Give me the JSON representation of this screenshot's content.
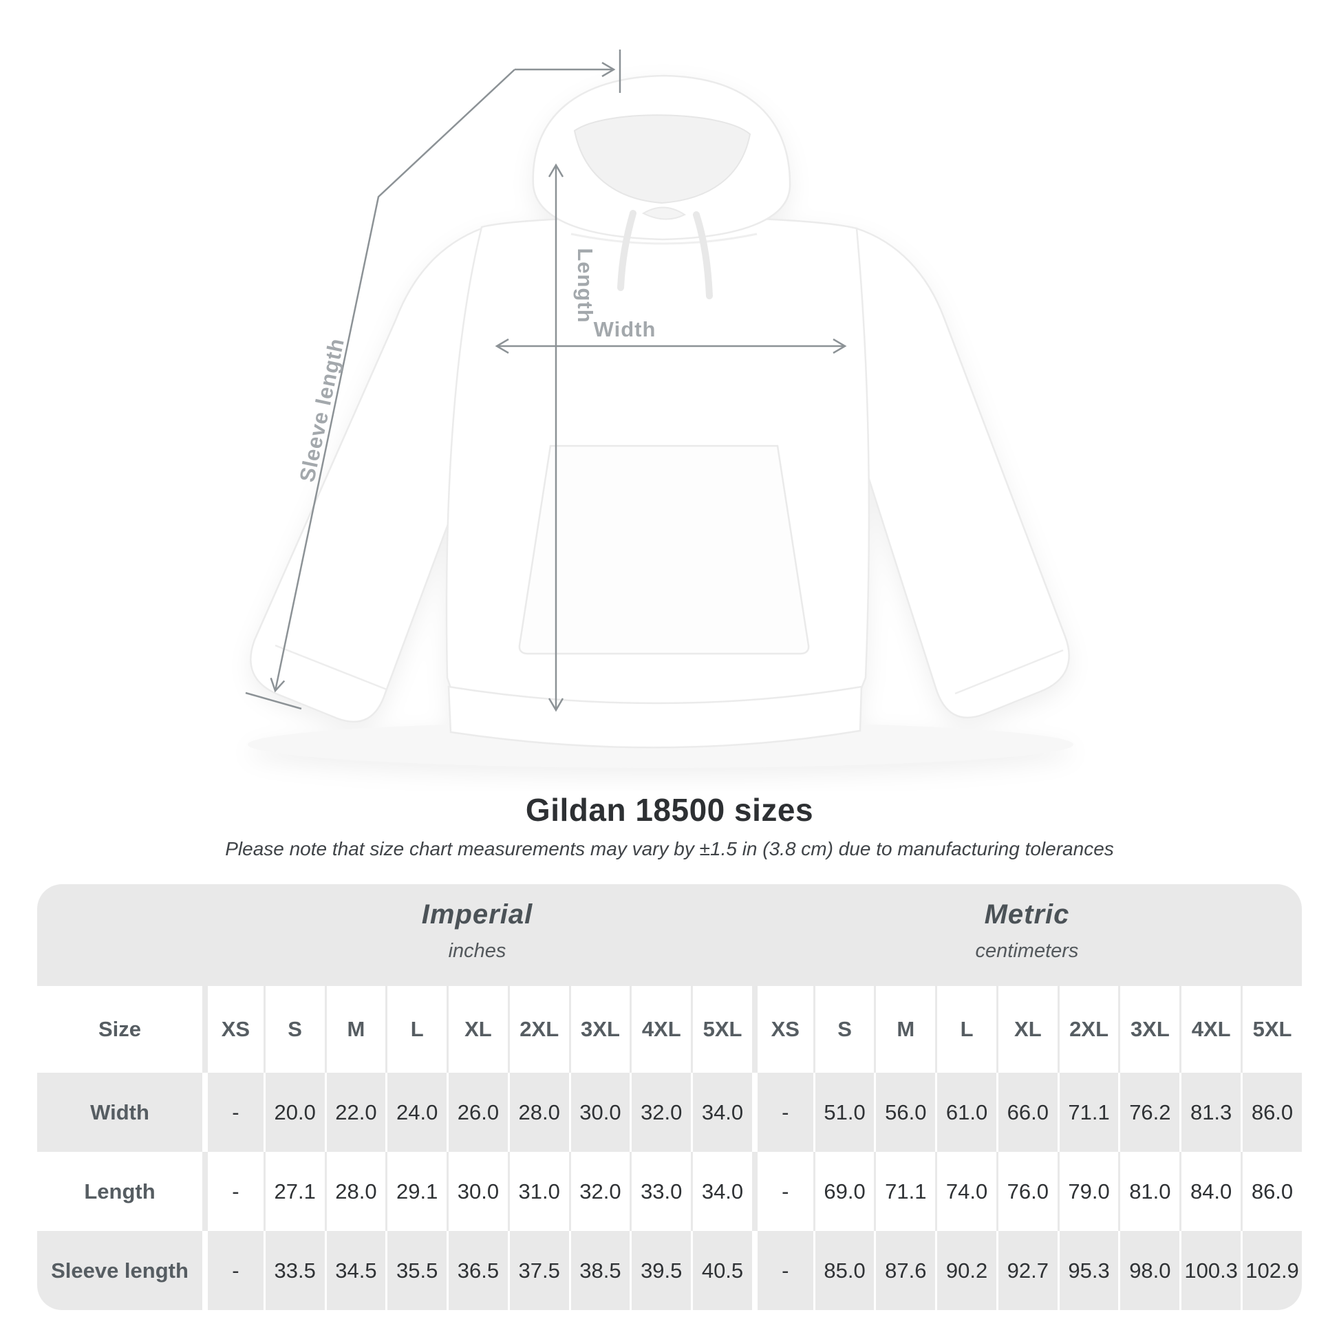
{
  "figure": {
    "sleeve_label": "Sleeve length",
    "length_label": "Length",
    "width_label": "Width"
  },
  "header": {
    "title": "Gildan 18500 sizes",
    "note": "Please note that size chart measurements may vary by ±1.5 in (3.8 cm) due to manufacturing tolerances"
  },
  "table": {
    "size_column_header": "Size",
    "groups": [
      {
        "name": "Imperial",
        "unit": "inches"
      },
      {
        "name": "Metric",
        "unit": "centimeters"
      }
    ],
    "sizes": [
      "XS",
      "S",
      "M",
      "L",
      "XL",
      "2XL",
      "3XL",
      "4XL",
      "5XL"
    ],
    "rows": [
      {
        "label": "Width",
        "imperial": [
          "-",
          "20.0",
          "22.0",
          "24.0",
          "26.0",
          "28.0",
          "30.0",
          "32.0",
          "34.0"
        ],
        "metric": [
          "-",
          "51.0",
          "56.0",
          "61.0",
          "66.0",
          "71.1",
          "76.2",
          "81.3",
          "86.0"
        ]
      },
      {
        "label": "Length",
        "imperial": [
          "-",
          "27.1",
          "28.0",
          "29.1",
          "30.0",
          "31.0",
          "32.0",
          "33.0",
          "34.0"
        ],
        "metric": [
          "-",
          "69.0",
          "71.1",
          "74.0",
          "76.0",
          "79.0",
          "81.0",
          "84.0",
          "86.0"
        ]
      },
      {
        "label": "Sleeve length",
        "imperial": [
          "-",
          "33.5",
          "34.5",
          "35.5",
          "36.5",
          "37.5",
          "38.5",
          "39.5",
          "40.5"
        ],
        "metric": [
          "-",
          "85.0",
          "87.6",
          "90.2",
          "92.7",
          "95.3",
          "98.0",
          "100.3",
          "102.9"
        ]
      }
    ]
  },
  "colors": {
    "measure_line": "#8c9296",
    "figure_label": "#a3a8ac",
    "band_bg": "#e9e9e9",
    "shaded_row_bg": "#e9e9e9",
    "header_text": "#565d62",
    "value_text": "#2f3235",
    "title_text": "#2d3033",
    "note_text": "#3f4347"
  }
}
